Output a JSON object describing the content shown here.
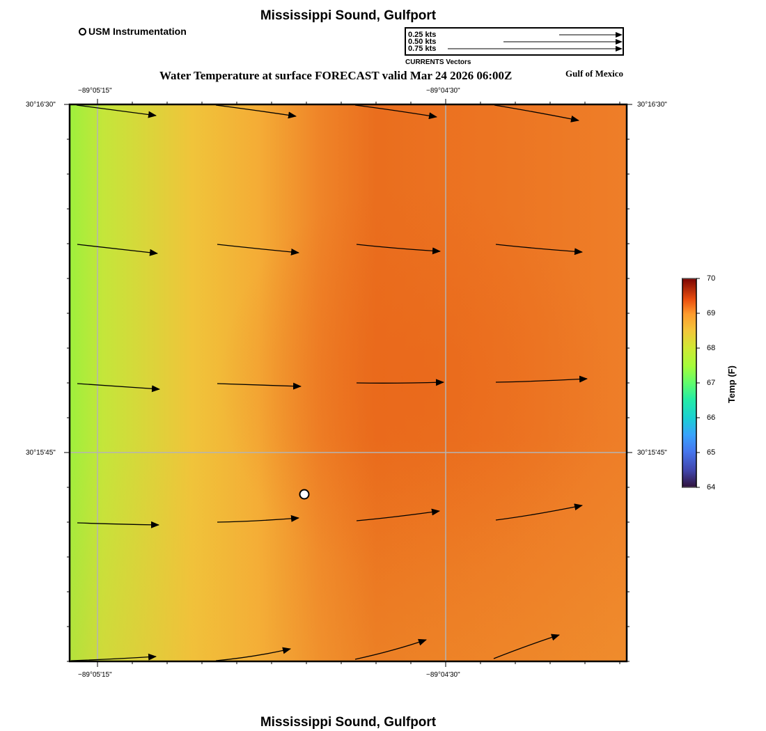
{
  "header": {
    "title": "Mississippi Sound, Gulfport",
    "subtitle": "Water Temperature at surface FORECAST valid Mar 24 2026 06:00Z",
    "region": "Gulf of Mexico"
  },
  "footer": {
    "title": "Mississippi Sound, Gulfport"
  },
  "legend": {
    "station_label": "USM Instrumentation",
    "station_icon": "open-circle-icon"
  },
  "vector_key": {
    "entries": [
      "0.25 kts",
      "0.50 kts",
      "0.75 kts"
    ],
    "caption": "CURRENTS Vectors"
  },
  "map": {
    "lon_labels": [
      "−89°05'15\"",
      "−89°04'30\""
    ],
    "lat_labels": [
      "30°16'30\"",
      "30°15'45\""
    ],
    "station": {
      "name": "USM Instrumentation"
    },
    "colors": {
      "cool": "#9ef03c",
      "mid": "#f5b83a",
      "warm": "#ea6e1e",
      "grid": "#b4b4b4"
    }
  },
  "colorbar": {
    "title": "Temp (F)",
    "ticks": [
      "70",
      "69",
      "68",
      "67",
      "66",
      "65",
      "64"
    ],
    "min": 64,
    "max": 70
  }
}
